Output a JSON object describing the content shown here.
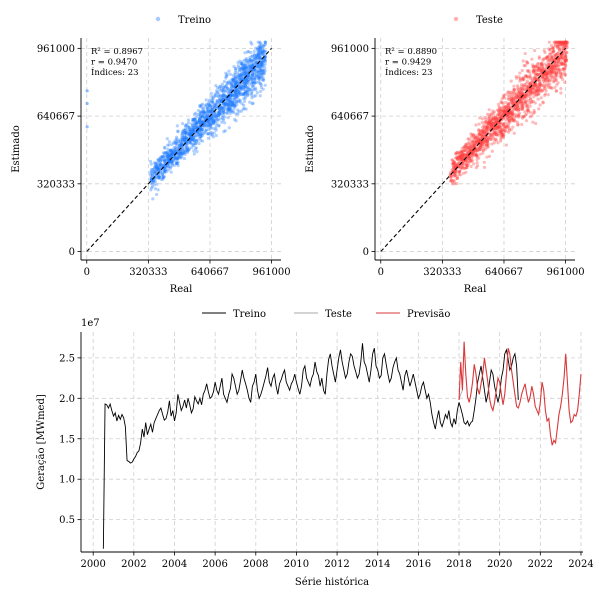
{
  "chart_data": [
    {
      "type": "scatter",
      "id": "train",
      "legend": "Treino",
      "xlabel": "Real",
      "ylabel": "Estimado",
      "xlim": [
        -30000,
        1010000
      ],
      "ylim": [
        -40000,
        1010000
      ],
      "xticks": [
        0,
        320333,
        640667,
        961000
      ],
      "xtick_labels": [
        "0",
        "320333",
        "640667",
        "961000"
      ],
      "yticks": [
        0,
        320333,
        640667,
        961000
      ],
      "ytick_labels": [
        "0",
        "320333",
        "640667",
        "961000"
      ],
      "annotations": [
        "R² = 0.8967",
        "r = 0.9470",
        "Índices: 23"
      ],
      "color": "#1f7bff",
      "identity_line": [
        0,
        961000
      ],
      "cloud": {
        "x_min": 330000,
        "x_max": 930000,
        "center_slope": 0.95,
        "spread": 50000,
        "n_points": 1600
      },
      "outliers": [
        [
          2000,
          760000
        ],
        [
          2000,
          700000
        ],
        [
          2000,
          590000
        ]
      ]
    },
    {
      "type": "scatter",
      "id": "test",
      "legend": "Teste",
      "xlabel": "Real",
      "ylabel": "Estimado",
      "xlim": [
        -30000,
        1010000
      ],
      "ylim": [
        -40000,
        1010000
      ],
      "xticks": [
        0,
        320333,
        640667,
        961000
      ],
      "xtick_labels": [
        "0",
        "320333",
        "640667",
        "961000"
      ],
      "yticks": [
        0,
        320333,
        640667,
        961000
      ],
      "ytick_labels": [
        "0",
        "320333",
        "640667",
        "961000"
      ],
      "annotations": [
        "R² = 0.8890",
        "r = 0.9429",
        "Índices: 23"
      ],
      "color": "#ff3b3b",
      "identity_line": [
        0,
        961000
      ],
      "cloud": {
        "x_min": 360000,
        "x_max": 970000,
        "center_slope": 0.95,
        "spread": 55000,
        "n_points": 1500
      },
      "outliers": []
    },
    {
      "type": "line",
      "id": "series",
      "xlabel": "Série histórica",
      "ylabel": "Geração [MWmed]",
      "y_multiplier": "1e7",
      "xlim": [
        1999.4,
        2024.1
      ],
      "ylim": [
        0.1,
        2.82
      ],
      "xticks": [
        2000,
        2002,
        2004,
        2006,
        2008,
        2010,
        2012,
        2014,
        2016,
        2018,
        2020,
        2022,
        2024
      ],
      "xtick_labels": [
        "2000",
        "2002",
        "2004",
        "2006",
        "2008",
        "2010",
        "2012",
        "2014",
        "2016",
        "2018",
        "2020",
        "2022",
        "2024"
      ],
      "yticks": [
        0.5,
        1.0,
        1.5,
        2.0,
        2.5
      ],
      "ytick_labels": [
        "0.5",
        "1.0",
        "1.5",
        "2.0",
        "2.5"
      ],
      "legend": [
        "Treino",
        "Teste",
        "Previsão"
      ],
      "series": [
        {
          "name": "Treino",
          "color": "#000000",
          "x_start": 2000.5,
          "x_step": 0.0833333,
          "values": [
            0.14,
            1.93,
            1.92,
            1.88,
            1.93,
            1.85,
            1.78,
            1.82,
            1.72,
            1.79,
            1.74,
            1.8,
            1.76,
            1.65,
            1.23,
            1.22,
            1.2,
            1.21,
            1.25,
            1.28,
            1.33,
            1.35,
            1.45,
            1.62,
            1.52,
            1.7,
            1.55,
            1.62,
            1.68,
            1.58,
            1.7,
            1.75,
            1.8,
            1.85,
            1.88,
            1.8,
            1.73,
            1.75,
            1.83,
            1.97,
            1.78,
            1.85,
            1.72,
            1.82,
            2.05,
            1.95,
            1.85,
            1.9,
            1.98,
            1.88,
            2.0,
            1.92,
            1.82,
            1.87,
            2.02,
            1.97,
            1.93,
            2.0,
            1.92,
            2.05,
            2.1,
            2.18,
            2.08,
            2.0,
            2.02,
            2.08,
            2.2,
            2.1,
            2.05,
            2.15,
            2.25,
            2.05,
            2.0,
            1.95,
            2.05,
            2.12,
            2.3,
            2.25,
            2.15,
            2.05,
            2.1,
            2.22,
            2.35,
            2.25,
            2.18,
            2.1,
            2.0,
            1.95,
            2.15,
            2.2,
            2.3,
            2.1,
            2.0,
            2.05,
            2.12,
            2.2,
            2.28,
            2.38,
            2.2,
            2.15,
            2.25,
            2.3,
            2.15,
            2.05,
            2.18,
            2.23,
            2.3,
            2.35,
            2.2,
            2.15,
            2.1,
            2.18,
            2.22,
            2.3,
            2.2,
            2.12,
            2.05,
            2.15,
            2.35,
            2.4,
            2.25,
            2.2,
            2.15,
            2.25,
            2.3,
            2.45,
            2.33,
            2.28,
            2.15,
            2.25,
            2.1,
            2.05,
            2.3,
            2.48,
            2.55,
            2.4,
            2.3,
            2.2,
            2.35,
            2.5,
            2.6,
            2.45,
            2.35,
            2.25,
            2.3,
            2.45,
            2.55,
            2.52,
            2.4,
            2.33,
            2.25,
            2.3,
            2.45,
            2.68,
            2.45,
            2.4,
            2.3,
            2.2,
            2.35,
            2.55,
            2.62,
            2.4,
            2.35,
            2.25,
            2.28,
            2.5,
            2.55,
            2.42,
            2.3,
            2.2,
            2.25,
            2.38,
            2.45,
            2.5,
            2.35,
            2.3,
            2.2,
            2.1,
            2.28,
            2.35,
            2.25,
            2.15,
            2.22,
            2.3,
            2.2,
            2.1,
            2.0,
            2.05,
            2.15,
            2.2,
            2.1,
            2.0,
            2.05,
            1.95,
            1.8,
            1.7,
            1.62,
            1.75,
            1.85,
            1.7,
            1.65,
            1.72,
            1.8,
            1.75,
            1.85,
            1.7,
            1.65,
            1.75,
            1.68,
            1.85,
            1.95,
            1.88,
            1.8,
            1.7,
            1.68,
            1.72,
            1.66,
            1.7,
            1.72,
            1.85,
            2.0,
            2.2,
            2.3,
            2.4,
            2.25,
            2.1,
            1.95,
            2.05,
            2.2,
            2.35,
            2.3,
            2.15,
            2.05,
            1.95,
            2.05,
            2.25,
            2.35,
            2.55,
            2.6,
            2.48,
            2.35,
            2.4,
            2.5,
            2.55,
            2.4,
            1.98
          ]
        },
        {
          "name": "Teste",
          "color": "#aaaaaa",
          "x_start": 2018.0,
          "x_step": 0.0833333,
          "values": [
            1.98,
            2.05,
            2.1
          ]
        },
        {
          "name": "Previsão",
          "color": "#d9393b",
          "x_start": 2018.0,
          "x_step": 0.0833333,
          "values": [
            1.98,
            2.45,
            2.1,
            2.7,
            2.3,
            2.02,
            1.95,
            2.05,
            2.2,
            2.42,
            2.3,
            2.12,
            2.05,
            2.18,
            2.3,
            2.5,
            2.35,
            2.2,
            2.0,
            1.9,
            1.85,
            1.95,
            2.1,
            2.25,
            2.2,
            2.05,
            1.92,
            2.05,
            2.3,
            2.62,
            2.55,
            2.35,
            2.2,
            2.05,
            1.9,
            1.88,
            1.95,
            2.05,
            2.12,
            2.18,
            2.05,
            1.95,
            2.02,
            2.15,
            2.05,
            1.9,
            1.85,
            1.8,
            1.95,
            2.2,
            2.1,
            1.85,
            1.72,
            1.75,
            1.55,
            1.42,
            1.48,
            1.45,
            1.62,
            1.8,
            1.9,
            2.05,
            2.25,
            2.55,
            2.2,
            1.85,
            1.7,
            1.72,
            1.8,
            1.78,
            1.85,
            2.05,
            2.3
          ]
        }
      ]
    }
  ]
}
